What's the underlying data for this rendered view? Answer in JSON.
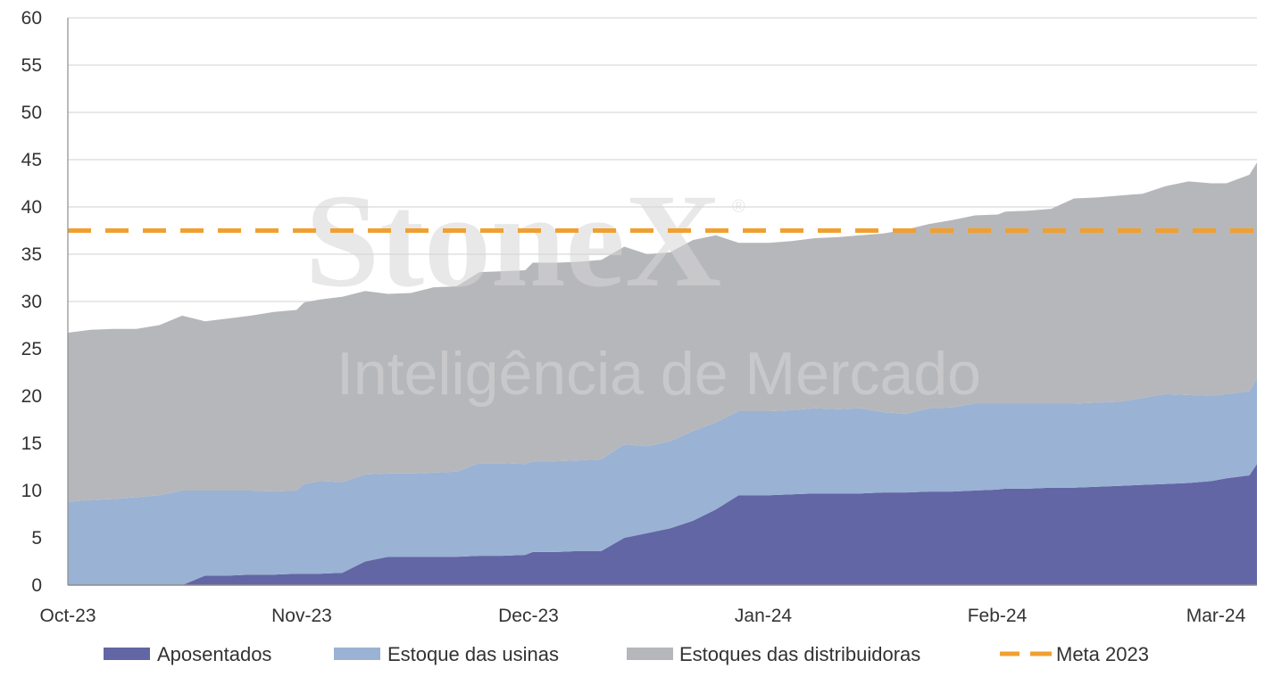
{
  "chart_data": {
    "type": "area",
    "stacked": true,
    "title": "",
    "xlabel": "",
    "ylabel": "",
    "ylim": [
      0,
      60
    ],
    "y_ticks": [
      0,
      5,
      10,
      15,
      20,
      25,
      30,
      35,
      40,
      45,
      50,
      55,
      60
    ],
    "x_ticks": [
      "Oct-23",
      "Nov-23",
      "Dec-23",
      "Jan-24",
      "Feb-24",
      "Mar-24"
    ],
    "x_range": [
      "2023-10-01",
      "2024-03-05"
    ],
    "grid": "horizontal",
    "legend_position": "bottom",
    "x": [
      "2023-10-01",
      "2023-10-04",
      "2023-10-07",
      "2023-10-10",
      "2023-10-13",
      "2023-10-16",
      "2023-10-19",
      "2023-10-22",
      "2023-10-25",
      "2023-10-28",
      "2023-10-31",
      "2023-11-01",
      "2023-11-03",
      "2023-11-06",
      "2023-11-09",
      "2023-11-12",
      "2023-11-15",
      "2023-11-18",
      "2023-11-21",
      "2023-11-24",
      "2023-11-27",
      "2023-11-30",
      "2023-12-01",
      "2023-12-04",
      "2023-12-07",
      "2023-12-10",
      "2023-12-13",
      "2023-12-16",
      "2023-12-19",
      "2023-12-22",
      "2023-12-25",
      "2023-12-28",
      "2023-12-31",
      "2024-01-01",
      "2024-01-04",
      "2024-01-07",
      "2024-01-10",
      "2024-01-13",
      "2024-01-16",
      "2024-01-19",
      "2024-01-22",
      "2024-01-25",
      "2024-01-28",
      "2024-01-31",
      "2024-02-01",
      "2024-02-04",
      "2024-02-07",
      "2024-02-10",
      "2024-02-13",
      "2024-02-16",
      "2024-02-19",
      "2024-02-22",
      "2024-02-25",
      "2024-02-28",
      "2024-03-01",
      "2024-03-04",
      "2024-03-05"
    ],
    "series": [
      {
        "name": "Aposentados",
        "color": "#6266a5",
        "values": [
          0,
          0,
          0,
          0,
          0,
          0,
          1.0,
          1.0,
          1.1,
          1.1,
          1.2,
          1.2,
          1.2,
          1.3,
          2.5,
          3.0,
          3.0,
          3.0,
          3.0,
          3.1,
          3.1,
          3.2,
          3.5,
          3.5,
          3.6,
          3.6,
          5.0,
          5.5,
          6.0,
          6.8,
          8.0,
          9.5,
          9.5,
          9.5,
          9.6,
          9.7,
          9.7,
          9.7,
          9.8,
          9.8,
          9.9,
          9.9,
          10.0,
          10.1,
          10.2,
          10.2,
          10.3,
          10.3,
          10.4,
          10.5,
          10.6,
          10.7,
          10.8,
          11.0,
          11.3,
          11.6,
          12.8
        ]
      },
      {
        "name": "Estoque das usinas",
        "color": "#9ab2d4",
        "values": [
          8.8,
          9.0,
          9.1,
          9.3,
          9.5,
          10.0,
          9.0,
          9.0,
          8.9,
          8.8,
          8.8,
          9.5,
          9.8,
          9.6,
          9.2,
          8.8,
          8.8,
          8.9,
          9.0,
          9.8,
          9.8,
          9.6,
          9.6,
          9.6,
          9.6,
          9.7,
          9.9,
          9.2,
          9.2,
          9.5,
          9.2,
          8.9,
          8.9,
          8.9,
          8.9,
          9.0,
          8.9,
          9.0,
          8.5,
          8.3,
          8.8,
          8.9,
          9.2,
          9.1,
          9.0,
          9.0,
          8.9,
          8.9,
          8.9,
          8.9,
          9.2,
          9.5,
          9.3,
          9.0,
          8.9,
          8.9,
          9.1
        ]
      },
      {
        "name": "Estoques das distribuidoras",
        "color": "#b6b7bb",
        "values": [
          17.9,
          18.0,
          18.0,
          17.8,
          18.0,
          18.5,
          17.9,
          18.2,
          18.5,
          19.0,
          19.1,
          19.2,
          19.2,
          19.6,
          19.4,
          19.0,
          19.1,
          19.6,
          19.6,
          20.2,
          20.3,
          20.5,
          21.0,
          21.0,
          21.0,
          21.1,
          20.9,
          20.3,
          20.0,
          20.2,
          19.8,
          17.8,
          17.8,
          17.8,
          17.9,
          18.0,
          18.2,
          18.3,
          18.9,
          19.5,
          19.5,
          19.8,
          19.9,
          20.0,
          20.3,
          20.4,
          20.6,
          21.7,
          21.7,
          21.8,
          21.6,
          22.0,
          22.6,
          22.5,
          22.3,
          22.9,
          22.8
        ]
      }
    ],
    "reference_lines": [
      {
        "name": "Meta 2023",
        "value": 37.5,
        "color": "#f0a030",
        "style": "dashed"
      }
    ],
    "watermark": {
      "main": "StoneX",
      "reg": "®",
      "sub": "Inteligência de Mercado"
    }
  }
}
